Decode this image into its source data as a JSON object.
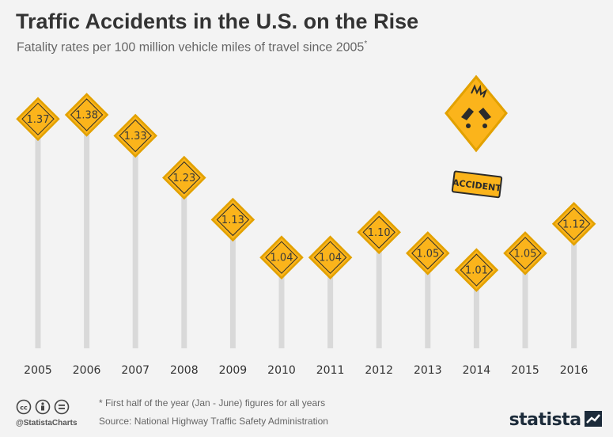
{
  "header": {
    "title": "Traffic Accidents in the U.S. on the Rise",
    "subtitle": "Fatality rates per 100 million vehicle miles of travel since 2005",
    "subtitle_mark": "*"
  },
  "colors": {
    "sign_fill": "#fbb41b",
    "sign_border": "#e2a100",
    "pole": "#d9d9d9",
    "sign_dark": "#2b2b2b"
  },
  "accident_sign": {
    "label": "ACCIDENT"
  },
  "chart_data": {
    "type": "bar",
    "categories": [
      "2005",
      "2006",
      "2007",
      "2008",
      "2009",
      "2010",
      "2011",
      "2012",
      "2013",
      "2014",
      "2015",
      "2016"
    ],
    "values": [
      1.37,
      1.38,
      1.33,
      1.23,
      1.13,
      1.04,
      1.04,
      1.1,
      1.05,
      1.01,
      1.05,
      1.12
    ],
    "value_labels": [
      "1.37",
      "1.38",
      "1.33",
      "1.23",
      "1.13",
      "1.04",
      "1.04",
      "1.10",
      "1.05",
      "1.01",
      "1.05",
      "1.12"
    ],
    "title": "Traffic Accidents in the U.S. on the Rise",
    "subtitle": "Fatality rates per 100 million vehicle miles of travel since 2005",
    "xlabel": "",
    "ylabel": "",
    "grid": false,
    "legend": "none"
  },
  "footer": {
    "handle": "@StatistaCharts",
    "footnote": "* First half of the year (Jan - June) figures for all years",
    "source": "Source: National Highway Traffic Safety Administration",
    "logo": "statista"
  },
  "icons": [
    "cc-icon",
    "by-icon",
    "nd-icon",
    "statista-logo-icon"
  ]
}
